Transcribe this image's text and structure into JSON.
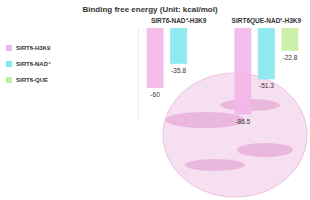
{
  "chart_data": {
    "type": "bar",
    "title": "Binding free energy (Unit: kcal/mol)",
    "categories": [
      "SIRT6-NAD⁺-H3K9",
      "SIRT6QUE-NAD⁺-H3K9"
    ],
    "series": [
      {
        "name": "SIRT6-H3K9",
        "color": "#f3b6e8",
        "values": [
          -60,
          -86.5
        ]
      },
      {
        "name": "SIRT6-NAD⁺",
        "color": "#86e8f0",
        "values": [
          -35.8,
          -51.3
        ]
      },
      {
        "name": "SIRT6-QUE",
        "color": "#c8eea0",
        "values": [
          null,
          -22.8
        ]
      }
    ],
    "ylim": [
      -90,
      0
    ],
    "yticks": [],
    "tick_labels": false,
    "data_labels": true,
    "legend": "left"
  }
}
